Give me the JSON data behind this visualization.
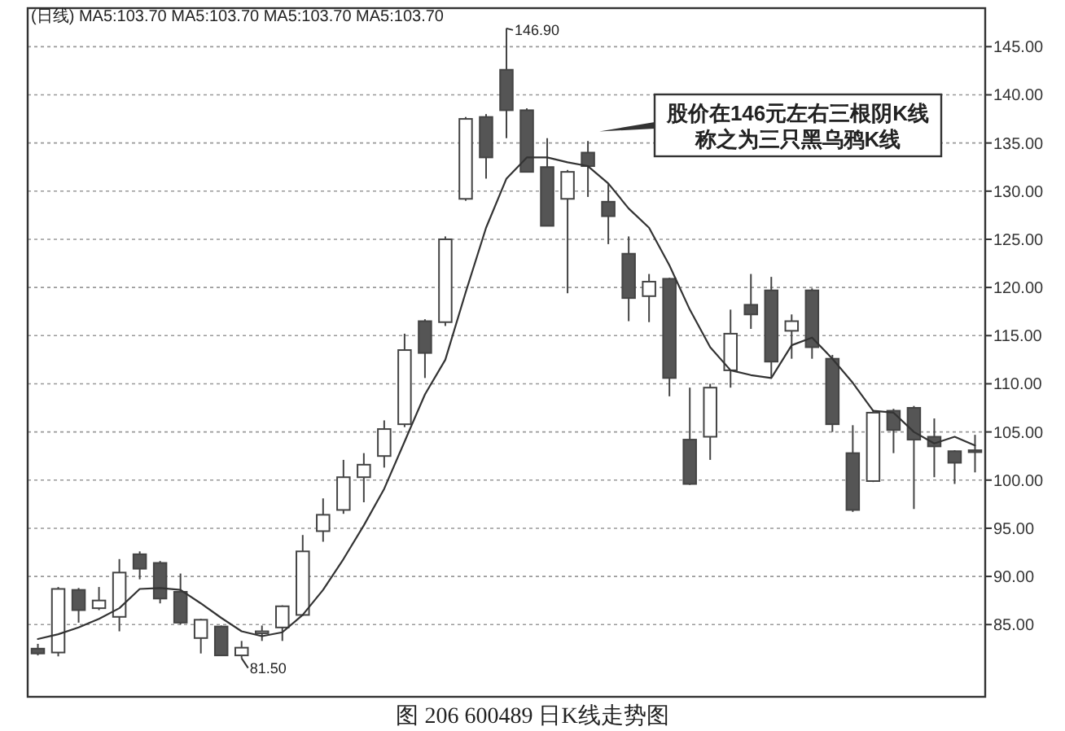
{
  "chart_data": {
    "type": "candlestick",
    "title": "图 206 600489 日K线走势图",
    "subtitle": "(日线) MA5:103.70 MA5:103.70 MA5:103.70 MA5:103.70",
    "categories": [
      null,
      null,
      null,
      null,
      null,
      null,
      null,
      null,
      null,
      null,
      null,
      null,
      null,
      null,
      null,
      null,
      null,
      null,
      null,
      null,
      null,
      null,
      null,
      null,
      null,
      null,
      null,
      null,
      null,
      null,
      null,
      null,
      null,
      null,
      null,
      null,
      null,
      null,
      null,
      null,
      null,
      null,
      null,
      null,
      null,
      null,
      null
    ],
    "ohlc": [
      [
        82.5,
        83.0,
        81.8,
        82.0
      ],
      [
        82.1,
        88.9,
        81.7,
        88.7
      ],
      [
        88.6,
        88.8,
        85.2,
        86.5
      ],
      [
        86.7,
        88.9,
        86.5,
        87.5
      ],
      [
        85.8,
        91.8,
        84.3,
        90.4
      ],
      [
        92.3,
        92.6,
        89.7,
        90.8
      ],
      [
        91.4,
        91.6,
        87.2,
        87.7
      ],
      [
        88.4,
        90.3,
        85.0,
        85.2
      ],
      [
        83.6,
        85.6,
        82.0,
        85.5
      ],
      [
        84.8,
        84.9,
        81.8,
        81.8
      ],
      [
        81.8,
        83.3,
        81.5,
        82.6
      ],
      [
        84.1,
        84.9,
        83.3,
        84.3
      ],
      [
        84.7,
        87.0,
        83.3,
        86.9
      ],
      [
        86.0,
        94.3,
        85.9,
        92.6
      ],
      [
        94.7,
        98.1,
        93.6,
        96.4
      ],
      [
        96.9,
        102.1,
        96.5,
        100.3
      ],
      [
        100.3,
        102.8,
        97.7,
        101.6
      ],
      [
        102.5,
        106.2,
        101.3,
        105.3
      ],
      [
        105.8,
        115.2,
        105.5,
        113.5
      ],
      [
        116.5,
        116.7,
        110.6,
        113.2
      ],
      [
        116.4,
        125.3,
        116.0,
        125.0
      ],
      [
        129.2,
        137.7,
        129.0,
        137.5
      ],
      [
        137.7,
        138.0,
        131.3,
        133.5
      ],
      [
        142.6,
        146.9,
        135.5,
        138.4
      ],
      [
        138.4,
        138.6,
        132.0,
        132.0
      ],
      [
        132.5,
        135.5,
        126.4,
        126.4
      ],
      [
        129.2,
        132.2,
        119.4,
        132.0
      ],
      [
        134.0,
        135.2,
        129.4,
        132.6
      ],
      [
        128.9,
        130.8,
        124.5,
        127.4
      ],
      [
        123.5,
        125.3,
        116.5,
        118.9
      ],
      [
        119.1,
        121.4,
        116.4,
        120.6
      ],
      [
        120.9,
        121.0,
        108.7,
        110.6
      ],
      [
        104.2,
        109.6,
        99.5,
        99.6
      ],
      [
        104.5,
        110.0,
        102.1,
        109.6
      ],
      [
        111.4,
        117.7,
        109.6,
        115.2
      ],
      [
        118.2,
        121.4,
        115.7,
        117.2
      ],
      [
        119.7,
        121.1,
        110.7,
        112.3
      ],
      [
        115.5,
        117.2,
        112.6,
        116.5
      ],
      [
        119.7,
        119.9,
        112.6,
        113.8
      ],
      [
        112.6,
        113.0,
        105.0,
        105.8
      ],
      [
        102.8,
        105.7,
        96.7,
        96.9
      ],
      [
        99.9,
        107.3,
        99.8,
        107.0
      ],
      [
        107.2,
        107.4,
        102.8,
        105.2
      ],
      [
        107.5,
        107.7,
        97.0,
        104.2
      ],
      [
        104.5,
        106.4,
        100.3,
        103.5
      ],
      [
        103.0,
        103.1,
        99.6,
        101.8
      ],
      [
        103.1,
        104.7,
        100.8,
        102.9
      ]
    ],
    "series": [
      {
        "type": "line",
        "color": "#333333",
        "values": [
          83.5,
          84.0,
          84.7,
          85.6,
          86.7,
          88.7,
          88.8,
          88.6,
          87.2,
          85.7,
          84.3,
          83.8,
          84.2,
          86.0,
          88.6,
          91.8,
          95.3,
          99.1,
          104.0,
          108.9,
          112.5,
          119.5,
          126.2,
          131.3,
          133.5,
          133.5,
          133.0,
          132.6,
          130.8,
          128.2,
          126.2,
          122.3,
          117.7,
          113.8,
          111.4,
          110.9,
          110.6,
          114.0,
          114.8,
          112.6,
          110.1,
          107.2,
          107.0,
          105.0,
          103.8,
          104.5,
          103.6
        ]
      }
    ],
    "ylim": [
      77.5,
      149
    ],
    "yticks": [
      {
        "value": 85,
        "label": "85.00"
      },
      {
        "value": 90,
        "label": "90.00"
      },
      {
        "value": 95,
        "label": "95.00"
      },
      {
        "value": 100,
        "label": "100.00"
      },
      {
        "value": 105,
        "label": "105.00"
      },
      {
        "value": 110,
        "label": "110.00"
      },
      {
        "value": 115,
        "label": "115.00"
      },
      {
        "value": 120,
        "label": "120.00"
      },
      {
        "value": 125,
        "label": "125.00"
      },
      {
        "value": 130,
        "label": "130.00"
      },
      {
        "value": 135,
        "label": "135.00"
      },
      {
        "value": 140,
        "label": "140.00"
      },
      {
        "value": 145,
        "label": "145.00"
      }
    ],
    "grid": "y",
    "annotations": [
      "股价在146元左右三根阴K线称之为三只黑乌鸦K线",
      "146.90",
      "81.50"
    ]
  }
}
